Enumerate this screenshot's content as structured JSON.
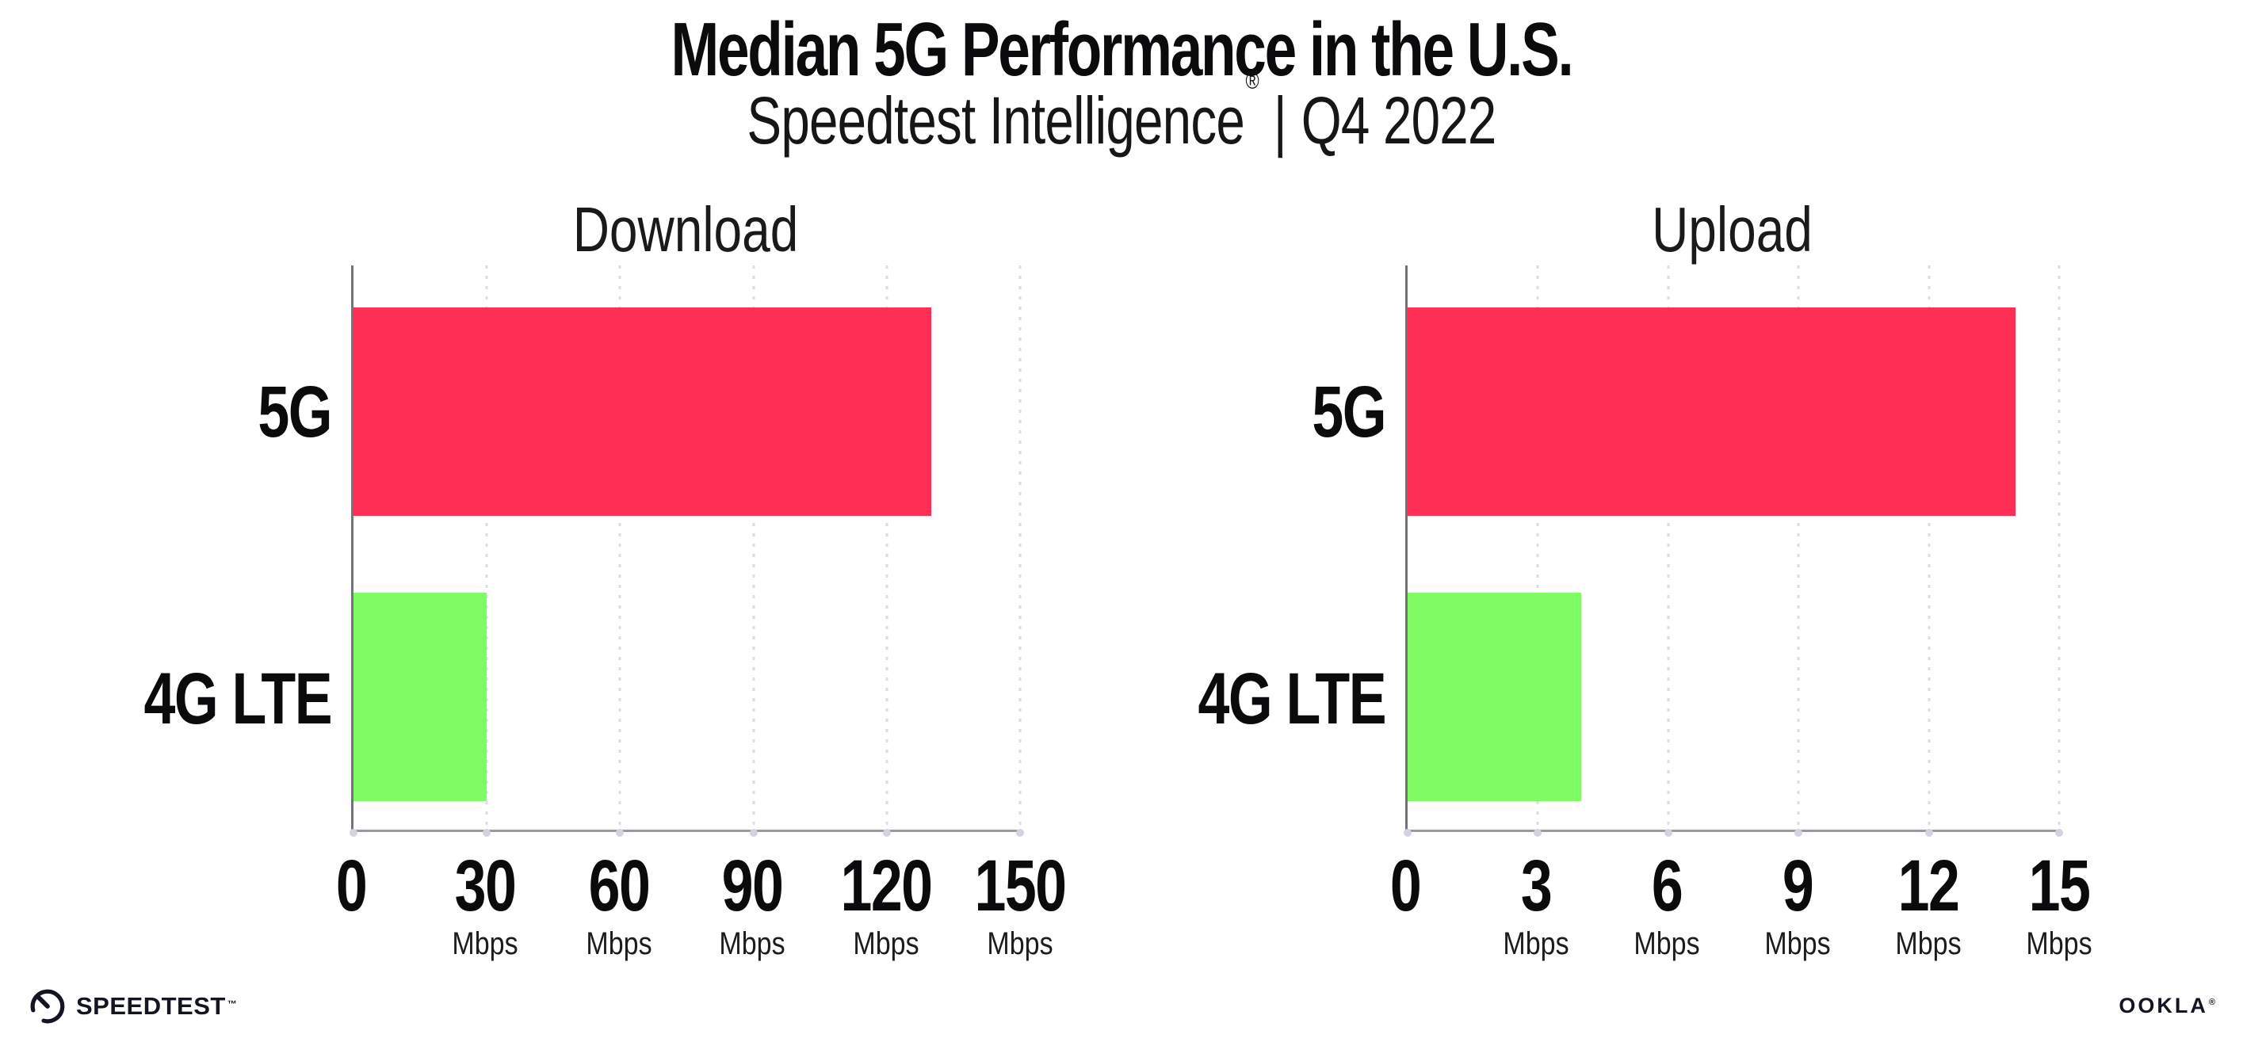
{
  "header": {
    "title": "Median 5G Performance in the U.S.",
    "subtitle": {
      "brand": "Speedtest Intelligence",
      "registered": "®",
      "separator": "|",
      "period": "Q4 2022"
    }
  },
  "chart_data": [
    {
      "type": "bar",
      "orientation": "horizontal",
      "title": "Download",
      "categories": [
        "5G",
        "4G LTE"
      ],
      "values": [
        130,
        30
      ],
      "unit": "Mbps",
      "xlim": [
        0,
        150
      ],
      "xticks": [
        0,
        30,
        60,
        90,
        120,
        150
      ],
      "bar_colors": [
        "#ff2e54",
        "#7ffc64"
      ],
      "grid": "vertical-dotted",
      "legend": "none"
    },
    {
      "type": "bar",
      "orientation": "horizontal",
      "title": "Upload",
      "categories": [
        "5G",
        "4G LTE"
      ],
      "values": [
        14,
        4
      ],
      "unit": "Mbps",
      "xlim": [
        0,
        15
      ],
      "xticks": [
        0,
        3,
        6,
        9,
        12,
        15
      ],
      "bar_colors": [
        "#ff2e54",
        "#7ffc64"
      ],
      "grid": "vertical-dotted",
      "legend": "none"
    }
  ],
  "footer": {
    "speedtest_logo_text": "SPEEDTEST",
    "speedtest_trademark": "™",
    "ookla_logo_text": "OOKLA",
    "ookla_registered": "®"
  },
  "colors": {
    "bar_5g": "#ff2e54",
    "bar_4g_lte": "#7ffc64",
    "gridline": "#dcdce6",
    "axis_x": "#9a9aa2",
    "axis_y": "#73737b",
    "text": "#0b0b0d",
    "background": "#ffffff"
  }
}
